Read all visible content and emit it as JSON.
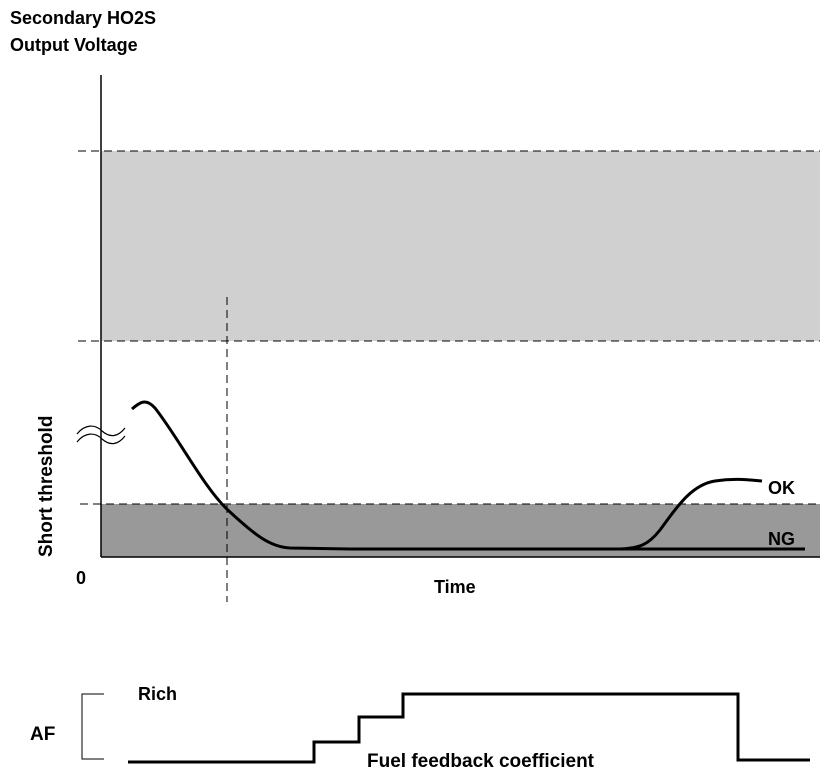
{
  "title_line1": "Secondary HO2S",
  "title_line2": "Output Voltage",
  "y_label": "Short threshold",
  "origin_label": "0",
  "x_label": "Time",
  "curve_labels": {
    "ok": "OK",
    "ng": "NG"
  },
  "af_chart": {
    "label": "AF",
    "rich_label": "Rich",
    "signal_label": "Fuel feedback coefficient"
  },
  "colors": {
    "light_band": "#d0d0d0",
    "dark_band": "#999999",
    "line": "#000000"
  }
}
